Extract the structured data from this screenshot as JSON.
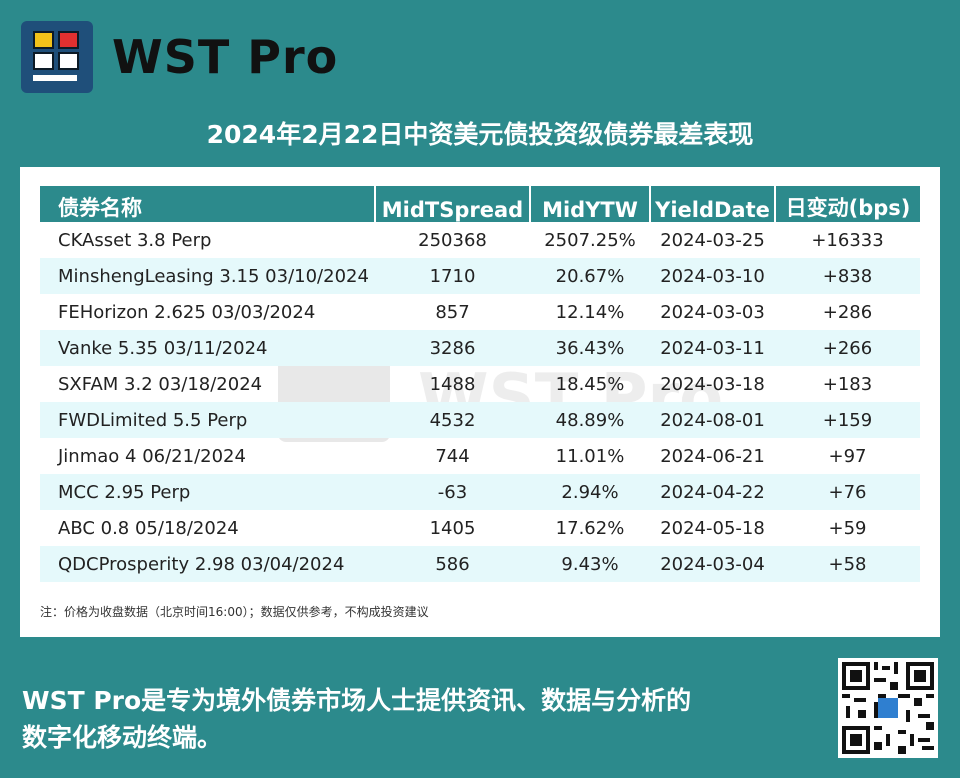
{
  "brand": {
    "name": "WST Pro"
  },
  "title": "2024年2月22日中资美元债投资级债券最差表现",
  "table": {
    "headers": [
      "债券名称",
      "MidTSpread",
      "MidYTW",
      "YieldDate",
      "日变动(bps)"
    ],
    "rows": [
      [
        "CKAsset 3.8 Perp",
        "250368",
        "2507.25%",
        "2024-03-25",
        "+16333"
      ],
      [
        "MinshengLeasing 3.15 03/10/2024",
        "1710",
        "20.67%",
        "2024-03-10",
        "+838"
      ],
      [
        "FEHorizon 2.625 03/03/2024",
        "857",
        "12.14%",
        "2024-03-03",
        "+286"
      ],
      [
        "Vanke 5.35 03/11/2024",
        "3286",
        "36.43%",
        "2024-03-11",
        "+266"
      ],
      [
        "SXFAM 3.2 03/18/2024",
        "1488",
        "18.45%",
        "2024-03-18",
        "+183"
      ],
      [
        "FWDLimited 5.5 Perp",
        "4532",
        "48.89%",
        "2024-08-01",
        "+159"
      ],
      [
        "Jinmao 4 06/21/2024",
        "744",
        "11.01%",
        "2024-06-21",
        "+97"
      ],
      [
        "MCC 2.95 Perp",
        "-63",
        "2.94%",
        "2024-04-22",
        "+76"
      ],
      [
        "ABC 0.8 05/18/2024",
        "1405",
        "17.62%",
        "2024-05-18",
        "+59"
      ],
      [
        "QDCProsperity 2.98 03/04/2024",
        "586",
        "9.43%",
        "2024-03-04",
        "+58"
      ]
    ]
  },
  "note": "注：价格为收盘数据（北京时间16:00）；数据仅供参考，不构成投资建议",
  "footer": {
    "line1": "WST Pro是专为境外债券市场人士提供资讯、数据与分析的",
    "line2": "数字化移动终端。"
  },
  "colors": {
    "background": "#2c8a8c",
    "header": "#2c8a8c",
    "row_alt": "#e5f9fb"
  }
}
